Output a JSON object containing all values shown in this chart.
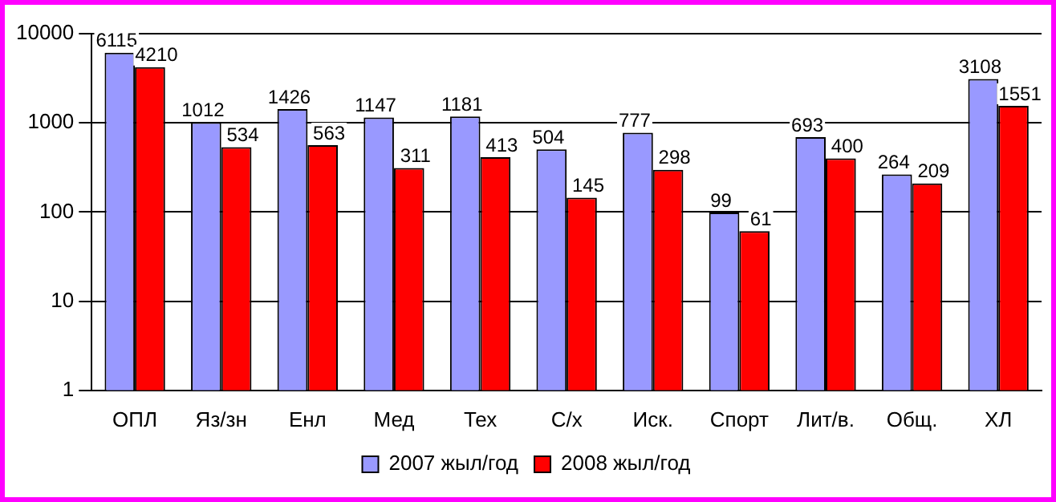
{
  "chart_data": {
    "type": "bar",
    "categories": [
      "ОПЛ",
      "Яз/зн",
      "Енл",
      "Мед",
      "Тех",
      "С/х",
      "Иск.",
      "Спорт",
      "Лит/в.",
      "Общ.",
      "ХЛ"
    ],
    "series": [
      {
        "name": "2007 жыл/год",
        "color": "#9999ff",
        "values": [
          6115,
          1012,
          1426,
          1147,
          1181,
          504,
          777,
          99,
          693,
          264,
          3108
        ]
      },
      {
        "name": "2008 жыл/год",
        "color": "#ff0000",
        "values": [
          4210,
          534,
          563,
          311,
          413,
          145,
          298,
          61,
          400,
          209,
          1551
        ]
      }
    ],
    "log": true,
    "ylim": [
      1,
      10000
    ],
    "yticks": [
      1,
      10,
      100,
      1000,
      10000
    ],
    "grid": "y",
    "legend": "bottom",
    "data_labels": true
  }
}
